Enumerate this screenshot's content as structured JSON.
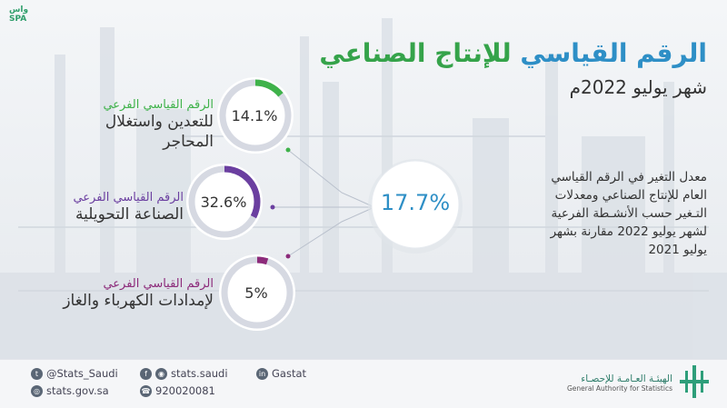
{
  "brand": {
    "logo_text_top": "واس",
    "logo_text_bottom": "SPA"
  },
  "header": {
    "title_part1": "الرقم القياسي",
    "title_part2": "للإنتاج الصناعي",
    "subtitle": "شهر يوليو 2022م"
  },
  "main": {
    "total_value": "17.7%",
    "description": "معدل التغير في الرقم القياسي العام للإنتاج الصناعي ومعدلات التـغير حسب الأنشـطة الفرعية لشهر يوليو 2022 مقارنة بشهر يوليو 2021"
  },
  "indices": [
    {
      "small_label": "الرقم القياسي الفرعي",
      "big_label": "للتعدين واستغلال المحاجر",
      "value": "14.1%",
      "fraction": 0.141,
      "color": "#3fb24a"
    },
    {
      "small_label": "الرقم القياسي الفرعي",
      "big_label": "الصناعة التحويلية",
      "value": "32.6%",
      "fraction": 0.326,
      "color": "#6b3fa0"
    },
    {
      "small_label": "الرقم القياسي الفرعي",
      "big_label": "لإمدادات الكهرباء والغاز",
      "value": "5%",
      "fraction": 0.05,
      "color": "#8c2a7a"
    }
  ],
  "footer": {
    "twitter": "@Stats_Saudi",
    "website": "stats.gov.sa",
    "social": "stats.saudi",
    "phone": "920020081",
    "linkedin": "Gastat",
    "agency_ar": "الهيئـة العـامـة للإحصـاء",
    "agency_en": "General Authority for Statistics"
  },
  "colors": {
    "accent_blue": "#2e8fc6",
    "accent_green": "#35a34a",
    "ring_track": "#d6d9e2"
  },
  "icons": [
    "twitter-icon",
    "globe-icon",
    "facebook-icon",
    "instagram-icon",
    "phone-icon",
    "linkedin-icon",
    "gastat-logo-icon"
  ]
}
